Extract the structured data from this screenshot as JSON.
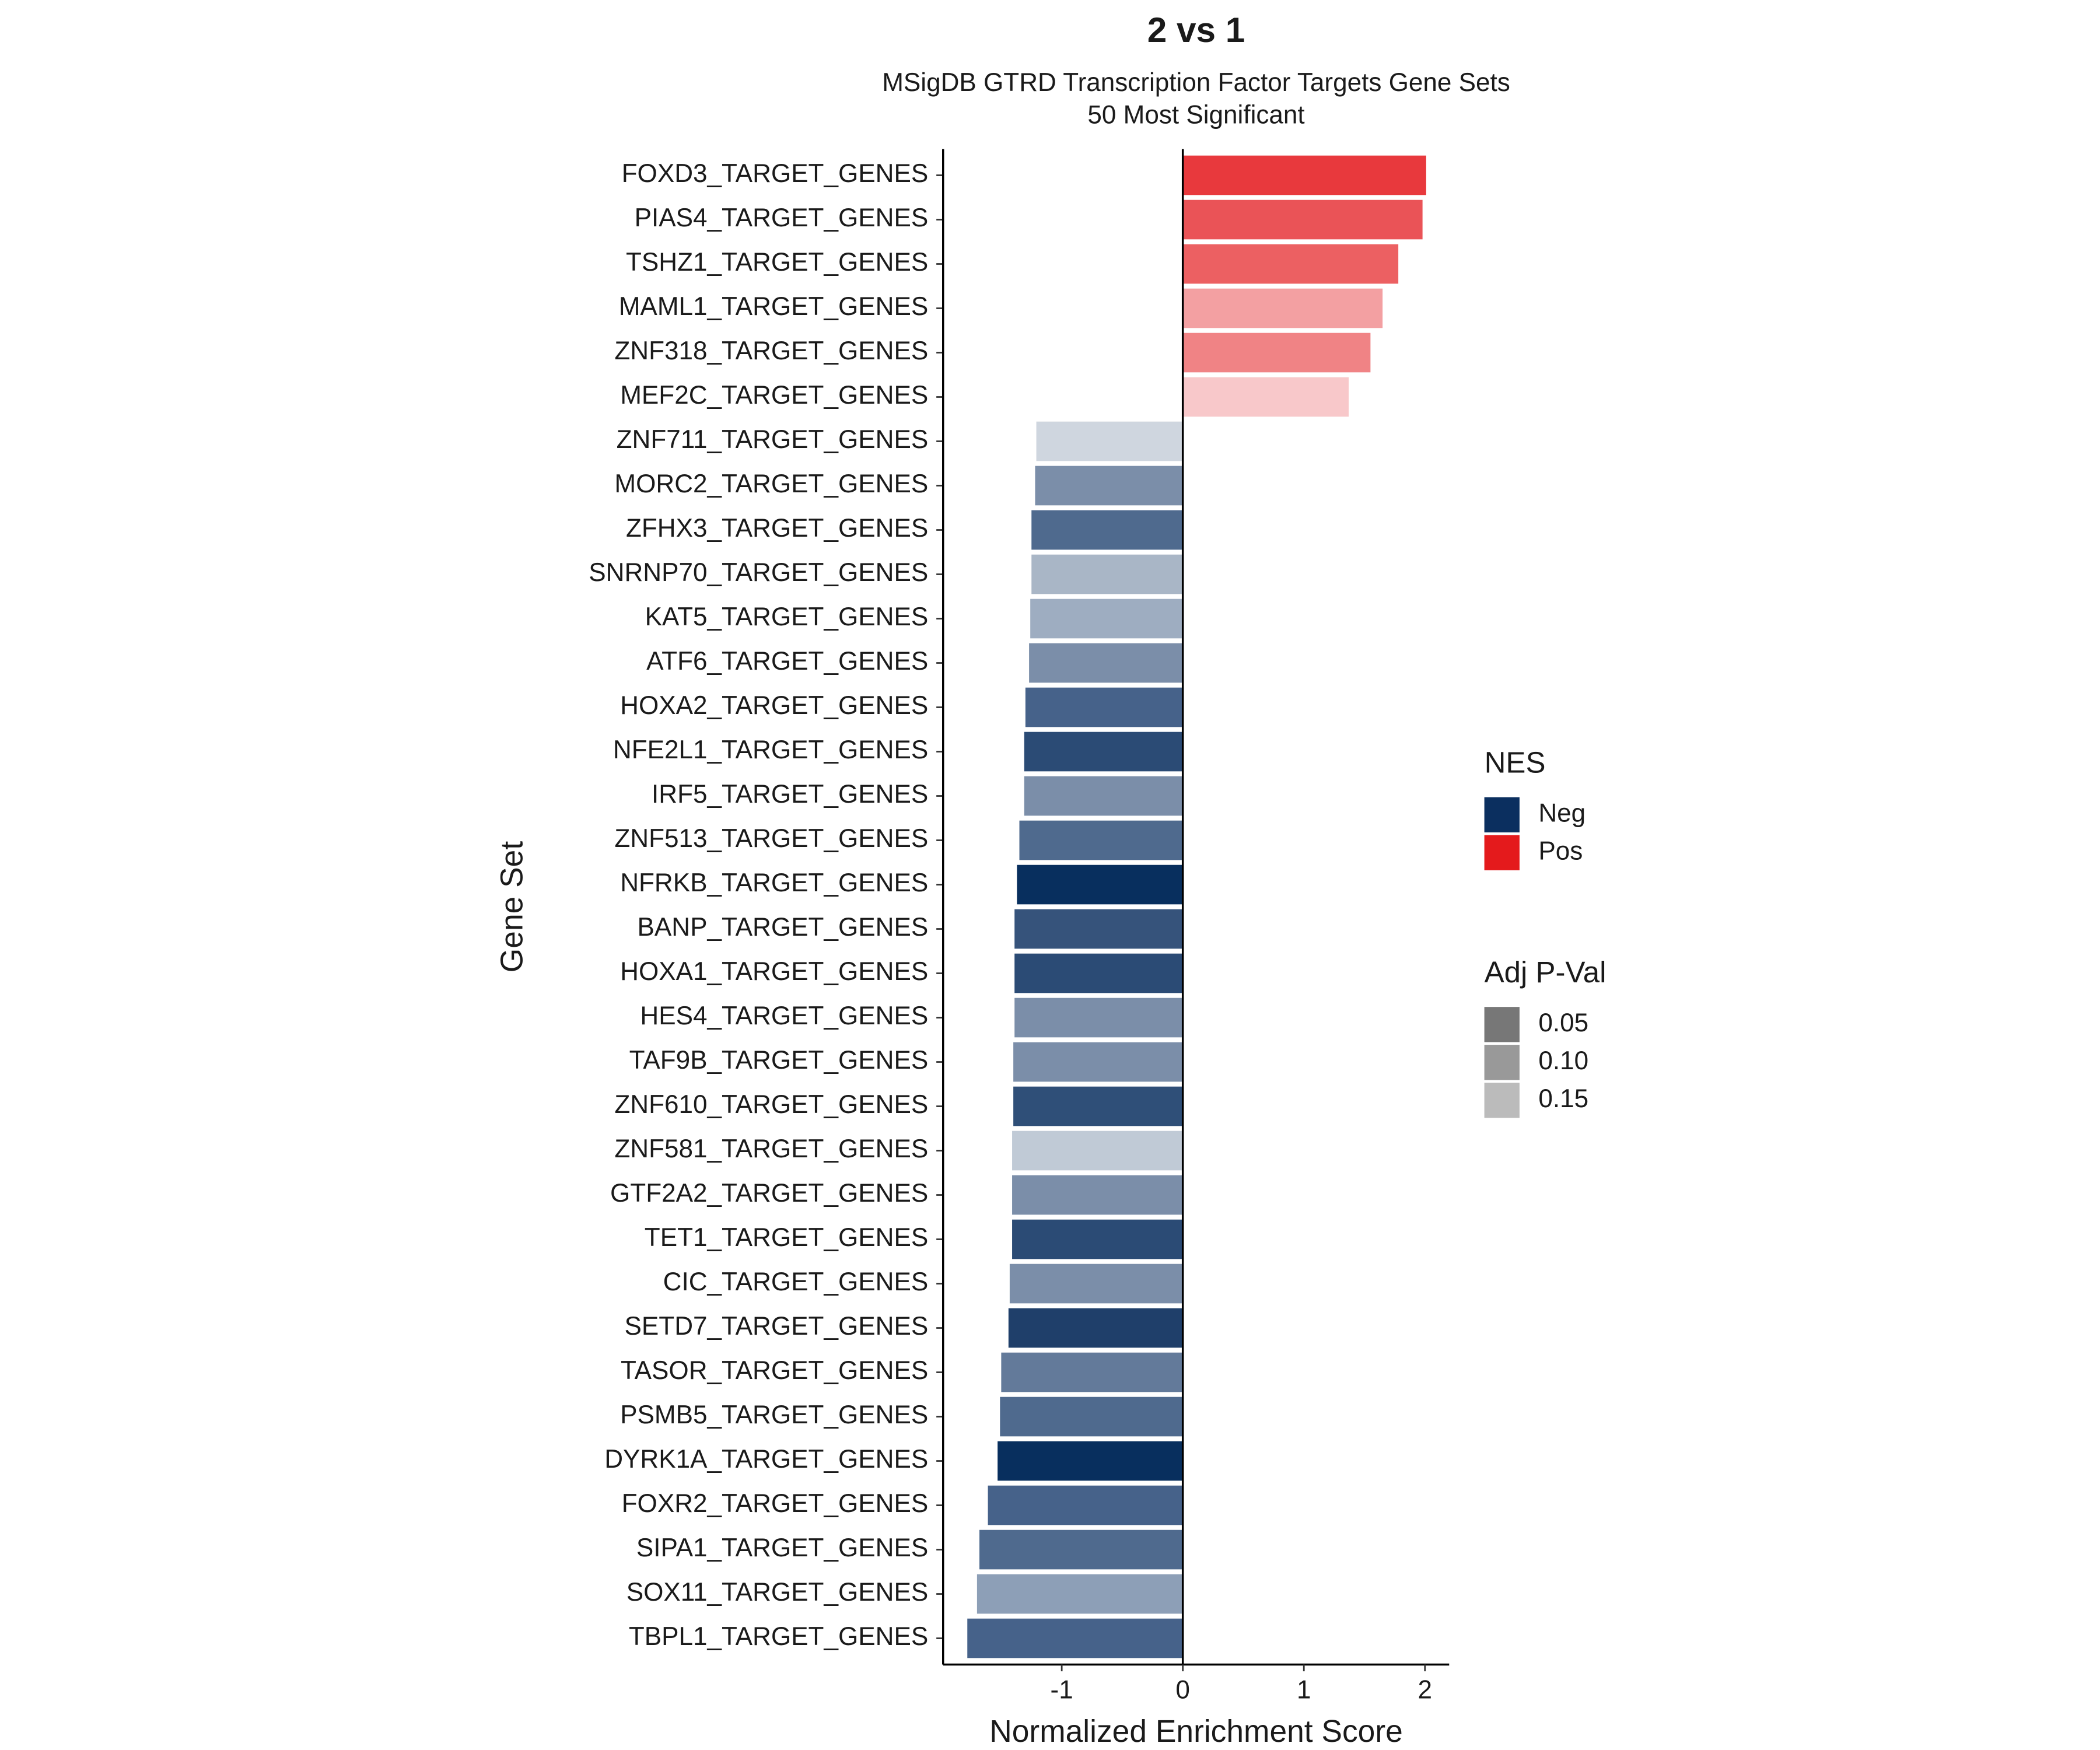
{
  "chart_data": {
    "type": "hbar",
    "title": "2 vs 1",
    "subtitle": [
      "MSigDB GTRD Transcription Factor Targets Gene Sets",
      "50 Most Significant"
    ],
    "x_label": "Normalized Enrichment Score",
    "y_label": "Gene Set",
    "categories": [
      "FOXD3_TARGET_GENES",
      "PIAS4_TARGET_GENES",
      "TSHZ1_TARGET_GENES",
      "MAML1_TARGET_GENES",
      "ZNF318_TARGET_GENES",
      "MEF2C_TARGET_GENES",
      "ZNF711_TARGET_GENES",
      "MORC2_TARGET_GENES",
      "ZFHX3_TARGET_GENES",
      "SNRNP70_TARGET_GENES",
      "KAT5_TARGET_GENES",
      "ATF6_TARGET_GENES",
      "HOXA2_TARGET_GENES",
      "NFE2L1_TARGET_GENES",
      "IRF5_TARGET_GENES",
      "ZNF513_TARGET_GENES",
      "NFRKB_TARGET_GENES",
      "BANP_TARGET_GENES",
      "HOXA1_TARGET_GENES",
      "HES4_TARGET_GENES",
      "TAF9B_TARGET_GENES",
      "ZNF610_TARGET_GENES",
      "ZNF581_TARGET_GENES",
      "GTF2A2_TARGET_GENES",
      "TET1_TARGET_GENES",
      "CIC_TARGET_GENES",
      "SETD7_TARGET_GENES",
      "TASOR_TARGET_GENES",
      "PSMB5_TARGET_GENES",
      "DYRK1A_TARGET_GENES",
      "FOXR2_TARGET_GENES",
      "SIPA1_TARGET_GENES",
      "SOX11_TARGET_GENES",
      "TBPL1_TARGET_GENES"
    ],
    "values": [
      2.01,
      1.98,
      1.78,
      1.65,
      1.55,
      1.37,
      -1.21,
      -1.22,
      -1.25,
      -1.25,
      -1.26,
      -1.27,
      -1.3,
      -1.31,
      -1.31,
      -1.35,
      -1.37,
      -1.39,
      -1.39,
      -1.39,
      -1.4,
      -1.4,
      -1.41,
      -1.41,
      -1.41,
      -1.43,
      -1.44,
      -1.5,
      -1.51,
      -1.53,
      -1.61,
      -1.68,
      -1.7,
      -1.78
    ],
    "colors": [
      "#e8393d",
      "#ea5357",
      "#ec6062",
      "#f3a0a2",
      "#f08385",
      "#f8c8ca",
      "#cfd6df",
      "#7b8ea9",
      "#4f6a8e",
      "#a9b6c6",
      "#9eadc1",
      "#7b8ea9",
      "#46628a",
      "#2b4b75",
      "#7b8ea9",
      "#4f6a8e",
      "#082f5e",
      "#36537b",
      "#2b4b75",
      "#7b8ea9",
      "#7b8ea9",
      "#2f4f78",
      "#c0cad6",
      "#7b8ea9",
      "#2b4b75",
      "#7b8ea9",
      "#1f3f6a",
      "#637a9a",
      "#4f6a8e",
      "#082f5e",
      "#46628a",
      "#4f6a8e",
      "#8d9fb7",
      "#46628a"
    ],
    "xlim": [
      -1.98,
      2.2
    ],
    "xticks": [
      -1,
      0,
      1,
      2
    ],
    "legends": [
      {
        "title": "NES",
        "items": [
          {
            "label": "Neg",
            "color": "#0b2f5f"
          },
          {
            "label": "Pos",
            "color": "#e41a1c"
          }
        ]
      },
      {
        "title": "Adj P-Val",
        "items": [
          {
            "label": "0.05",
            "color": "#777777"
          },
          {
            "label": "0.10",
            "color": "#999999"
          },
          {
            "label": "0.15",
            "color": "#bbbbbb"
          }
        ]
      }
    ]
  }
}
